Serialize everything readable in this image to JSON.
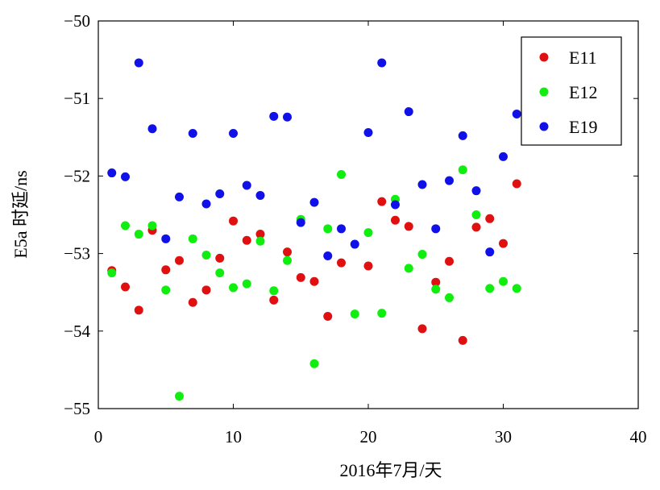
{
  "chart_data": {
    "type": "scatter",
    "title": "",
    "xlabel": "2016年7月/天",
    "ylabel": "E5a 时延/ns",
    "xlim": [
      0,
      40
    ],
    "ylim": [
      -55,
      -50
    ],
    "xticks": [
      0,
      10,
      20,
      30,
      40
    ],
    "yticks": [
      -50,
      -51,
      -52,
      -53,
      -54,
      -55
    ],
    "xtick_labels": [
      "0",
      "10",
      "20",
      "30",
      "40"
    ],
    "ytick_labels": [
      "−50",
      "−51",
      "−52",
      "−53",
      "−54",
      "−55"
    ],
    "grid": false,
    "legend_position": "top-right",
    "series": [
      {
        "name": "E11",
        "color": "#e01010",
        "x": [
          1,
          2,
          3,
          4,
          5,
          6,
          7,
          8,
          9,
          10,
          11,
          12,
          13,
          14,
          15,
          16,
          17,
          18,
          19,
          20,
          21,
          22,
          23,
          24,
          25,
          26,
          27,
          28,
          29,
          30,
          31
        ],
        "y": [
          -53.22,
          -53.43,
          -53.73,
          -52.7,
          -53.21,
          -53.09,
          -53.63,
          -53.47,
          -53.06,
          -52.58,
          -52.83,
          -52.75,
          -53.6,
          -52.98,
          -53.31,
          -53.36,
          -53.81,
          -53.12,
          null,
          -53.16,
          -52.33,
          -52.57,
          -52.65,
          -53.97,
          -53.37,
          -53.1,
          -54.12,
          -52.66,
          -52.55,
          -52.87,
          -52.1
        ]
      },
      {
        "name": "E12",
        "color": "#10ee10",
        "x": [
          1,
          2,
          3,
          4,
          5,
          6,
          7,
          8,
          9,
          10,
          11,
          12,
          13,
          14,
          15,
          16,
          17,
          18,
          19,
          20,
          21,
          22,
          23,
          24,
          25,
          26,
          27,
          28,
          29,
          30,
          31
        ],
        "y": [
          -53.25,
          -52.64,
          -52.75,
          -52.64,
          -53.47,
          -54.84,
          -52.81,
          -53.02,
          -53.25,
          -53.44,
          -53.39,
          -52.84,
          -53.48,
          -53.09,
          -52.56,
          -54.42,
          -52.68,
          -51.98,
          -53.78,
          -52.73,
          -53.77,
          -52.3,
          -53.19,
          -53.01,
          -53.46,
          -53.57,
          -51.92,
          -52.5,
          -53.45,
          -53.36,
          -53.45
        ]
      },
      {
        "name": "E19",
        "color": "#1010e8",
        "x": [
          1,
          2,
          3,
          4,
          5,
          6,
          7,
          8,
          9,
          10,
          11,
          12,
          13,
          14,
          15,
          16,
          17,
          18,
          19,
          20,
          21,
          22,
          23,
          24,
          25,
          26,
          27,
          28,
          29,
          30,
          31
        ],
        "y": [
          -51.96,
          -52.01,
          -50.54,
          -51.39,
          -52.81,
          -52.27,
          -51.45,
          -52.36,
          -52.23,
          -51.45,
          -52.12,
          -52.25,
          -51.23,
          -51.24,
          -52.6,
          -52.34,
          -53.03,
          -52.68,
          -52.88,
          -51.44,
          -50.54,
          -52.37,
          -51.17,
          -52.11,
          -52.68,
          -52.06,
          -51.48,
          -52.19,
          -52.98,
          -51.75,
          -51.2
        ]
      }
    ]
  }
}
